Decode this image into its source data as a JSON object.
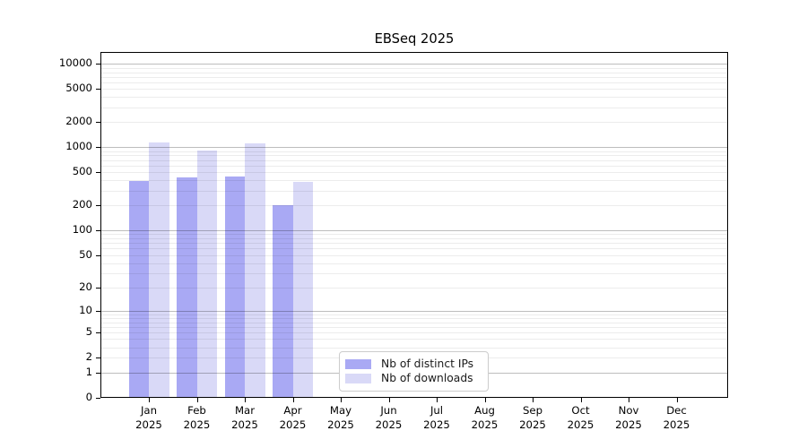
{
  "chart_data": {
    "type": "bar",
    "title": "EBSeq 2025",
    "year": "2025",
    "months": [
      "Jan",
      "Feb",
      "Mar",
      "Apr",
      "May",
      "Jun",
      "Jul",
      "Aug",
      "Sep",
      "Oct",
      "Nov",
      "Dec"
    ],
    "categories": [
      "Jan 2025",
      "Feb 2025",
      "Mar 2025",
      "Apr 2025",
      "May 2025",
      "Jun 2025",
      "Jul 2025",
      "Aug 2025",
      "Sep 2025",
      "Oct 2025",
      "Nov 2025",
      "Dec 2025"
    ],
    "series": [
      {
        "name": "Nb of distinct IPs",
        "color": "#a9a9f4",
        "values": [
          398,
          437,
          445,
          200,
          null,
          null,
          null,
          null,
          null,
          null,
          null,
          null
        ]
      },
      {
        "name": "Nb of downloads",
        "color": "#d9d9f7",
        "values": [
          1150,
          925,
          1110,
          385,
          null,
          null,
          null,
          null,
          null,
          null,
          null,
          null
        ]
      }
    ],
    "y_ticks": [
      0,
      1,
      2,
      5,
      10,
      20,
      50,
      100,
      200,
      500,
      1000,
      2000,
      5000,
      10000
    ],
    "y_scale": "log10(1+v)",
    "ylim": [
      0,
      14000
    ],
    "grid": "horizontal major+minor",
    "legend_position": "lower center inside plot",
    "colors": {
      "major_grid": "#bdbdbd",
      "minor_grid": "#ececec",
      "axis": "#000000"
    }
  }
}
